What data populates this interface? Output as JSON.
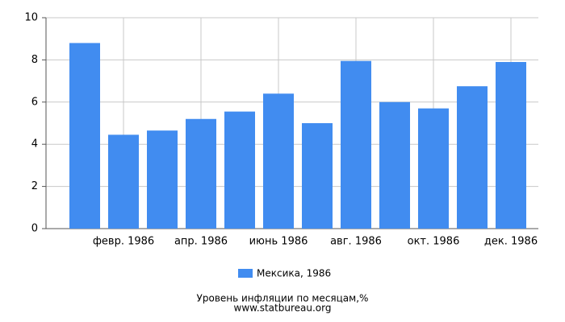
{
  "chart_data": {
    "type": "bar",
    "title": "Уровень инфляции по месяцам,%",
    "source": "www.statbureau.org",
    "categories": [
      null,
      "февр. 1986",
      null,
      "апр. 1986",
      null,
      "июнь 1986",
      null,
      "авг. 1986",
      null,
      "окт. 1986",
      null,
      "дек. 1986"
    ],
    "series": [
      {
        "name": "Мексика, 1986",
        "color": "#418cf0",
        "values": [
          8.8,
          4.45,
          4.65,
          5.2,
          5.55,
          6.4,
          5.0,
          7.95,
          6.0,
          5.7,
          6.75,
          7.9
        ]
      }
    ],
    "ylim": [
      0,
      10
    ],
    "yticks": [
      0,
      2,
      4,
      6,
      8,
      10
    ],
    "grid": true
  }
}
